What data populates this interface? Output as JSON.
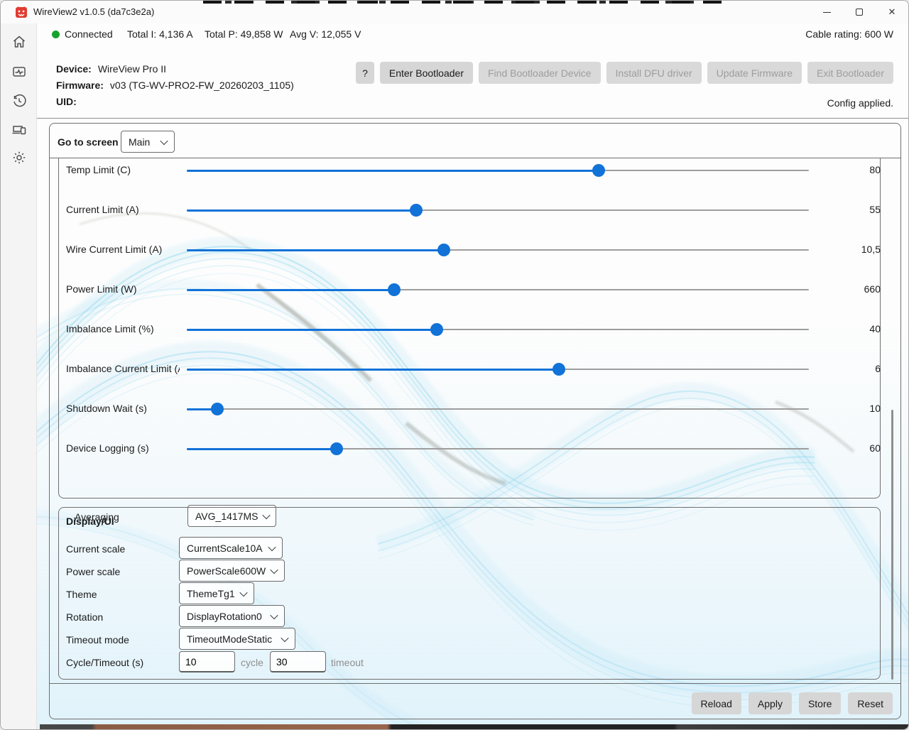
{
  "colors": {
    "accent": "#1172d8",
    "connected": "#17a22c",
    "wave": "#8fd6ef"
  },
  "window": {
    "title": "WireView2 v1.0.5 (da7c3e2a)"
  },
  "titlebar_icons": {
    "app": "thermal-grizzly-logo",
    "minimize": "minimize",
    "maximize": "maximize",
    "close": "✕"
  },
  "sidebar": {
    "items": [
      {
        "icon": "home-icon"
      },
      {
        "icon": "monitoring-icon"
      },
      {
        "icon": "history-icon"
      },
      {
        "icon": "devices-icon"
      },
      {
        "icon": "settings-gear-icon"
      }
    ]
  },
  "statusbar": {
    "connection": "Connected",
    "total_current": "Total I: 4,136 A",
    "total_power": "Total P: 49,858 W",
    "avg_voltage": "Avg V: 12,055 V",
    "cable_rating": "Cable rating: 600 W"
  },
  "device_info": {
    "device_label": "Device:",
    "device": "WireView Pro II",
    "firmware_label": "Firmware:",
    "firmware": "v03  (TG-WV-PRO2-FW_20260203_1105)",
    "uid_label": "UID:",
    "uid": ""
  },
  "toolbar": {
    "buttons": [
      {
        "label": "?",
        "enabled": true
      },
      {
        "label": "Enter Bootloader",
        "enabled": true
      },
      {
        "label": "Find Bootloader Device",
        "enabled": false
      },
      {
        "label": "Install DFU driver",
        "enabled": false
      },
      {
        "label": "Update Firmware",
        "enabled": false
      },
      {
        "label": "Exit Bootloader",
        "enabled": false
      }
    ],
    "status": "Config applied."
  },
  "screen_nav": {
    "label": "Go to screen",
    "selected": "Main"
  },
  "sliders": [
    {
      "label": "Temp Limit (C)",
      "value": "80",
      "percent": 66.2
    },
    {
      "label": "Current Limit (A)",
      "value": "55",
      "percent": 36.9
    },
    {
      "label": "Wire Current Limit (A)",
      "value": "10,5",
      "percent": 41.3
    },
    {
      "label": "Power Limit (W)",
      "value": "660",
      "percent": 33.3
    },
    {
      "label": "Imbalance Limit (%)",
      "value": "40",
      "percent": 40.2
    },
    {
      "label": "Imbalance Current Limit (A)",
      "value": "6",
      "percent": 59.8
    },
    {
      "label": "Shutdown Wait (s)",
      "value": "10",
      "percent": 4.9
    },
    {
      "label": "Device Logging (s)",
      "value": "60",
      "percent": 24.1
    }
  ],
  "averaging": {
    "label": "Averaging",
    "selected": "AVG_1417MS"
  },
  "display_ui": {
    "title": "Display/UI",
    "rows": [
      {
        "label": "Current scale",
        "value": "CurrentScale10A"
      },
      {
        "label": "Power scale",
        "value": "PowerScale600W"
      },
      {
        "label": "Theme",
        "value": "ThemeTg1"
      },
      {
        "label": "Rotation",
        "value": "DisplayRotation0"
      },
      {
        "label": "Timeout mode",
        "value": "TimeoutModeStatic"
      }
    ],
    "cycle_row": {
      "label": "Cycle/Timeout (s)",
      "cycle_value": "10",
      "cycle_unit": "cycle",
      "timeout_value": "30",
      "timeout_unit": "timeout"
    }
  },
  "footer": {
    "buttons": [
      "Reload",
      "Apply",
      "Store",
      "Reset"
    ]
  }
}
